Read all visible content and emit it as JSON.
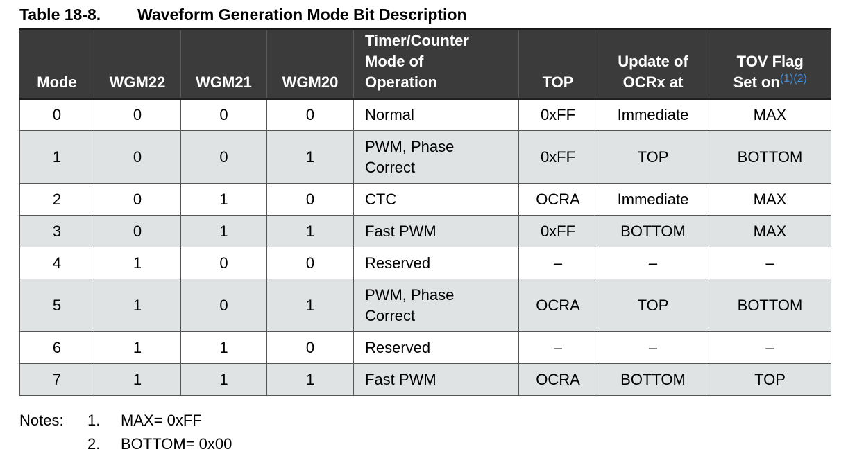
{
  "caption": {
    "number": "Table 18-8.",
    "title": "Waveform Generation Mode Bit Description"
  },
  "table": {
    "headers": {
      "mode": "Mode",
      "wgm22": "WGM22",
      "wgm21": "WGM21",
      "wgm20": "WGM20",
      "operation_line1": "Timer/Counter",
      "operation_line2": "Mode of",
      "operation_line3": "Operation",
      "top": "TOP",
      "update_line1": "Update of",
      "update_line2": "OCRx at",
      "tov_line1": "TOV Flag",
      "tov_line2": "Set on",
      "tov_refs": "(1)(2)"
    },
    "rows": [
      {
        "mode": "0",
        "wgm22": "0",
        "wgm21": "0",
        "wgm20": "0",
        "op_line1": "Normal",
        "op_line2": "",
        "top": "0xFF",
        "update": "Immediate",
        "tov": "MAX"
      },
      {
        "mode": "1",
        "wgm22": "0",
        "wgm21": "0",
        "wgm20": "1",
        "op_line1": "PWM, Phase",
        "op_line2": "Correct",
        "top": "0xFF",
        "update": "TOP",
        "tov": "BOTTOM"
      },
      {
        "mode": "2",
        "wgm22": "0",
        "wgm21": "1",
        "wgm20": "0",
        "op_line1": "CTC",
        "op_line2": "",
        "top": "OCRA",
        "update": "Immediate",
        "tov": "MAX"
      },
      {
        "mode": "3",
        "wgm22": "0",
        "wgm21": "1",
        "wgm20": "1",
        "op_line1": "Fast PWM",
        "op_line2": "",
        "top": "0xFF",
        "update": "BOTTOM",
        "tov": "MAX"
      },
      {
        "mode": "4",
        "wgm22": "1",
        "wgm21": "0",
        "wgm20": "0",
        "op_line1": "Reserved",
        "op_line2": "",
        "top": "–",
        "update": "–",
        "tov": "–"
      },
      {
        "mode": "5",
        "wgm22": "1",
        "wgm21": "0",
        "wgm20": "1",
        "op_line1": "PWM, Phase",
        "op_line2": "Correct",
        "top": "OCRA",
        "update": "TOP",
        "tov": "BOTTOM"
      },
      {
        "mode": "6",
        "wgm22": "1",
        "wgm21": "1",
        "wgm20": "0",
        "op_line1": "Reserved",
        "op_line2": "",
        "top": "–",
        "update": "–",
        "tov": "–"
      },
      {
        "mode": "7",
        "wgm22": "1",
        "wgm21": "1",
        "wgm20": "1",
        "op_line1": "Fast PWM",
        "op_line2": "",
        "top": "OCRA",
        "update": "BOTTOM",
        "tov": "TOP"
      }
    ]
  },
  "notes": {
    "label": "Notes:",
    "items": [
      {
        "num": "1.",
        "text": "MAX= 0xFF"
      },
      {
        "num": "2.",
        "text": "BOTTOM= 0x00"
      }
    ]
  },
  "colors": {
    "header_bg": "#3b3b3b",
    "header_text": "#ffffff",
    "stripe_bg": "#dfe3e3",
    "footnote_ref": "#3d8fe0"
  }
}
